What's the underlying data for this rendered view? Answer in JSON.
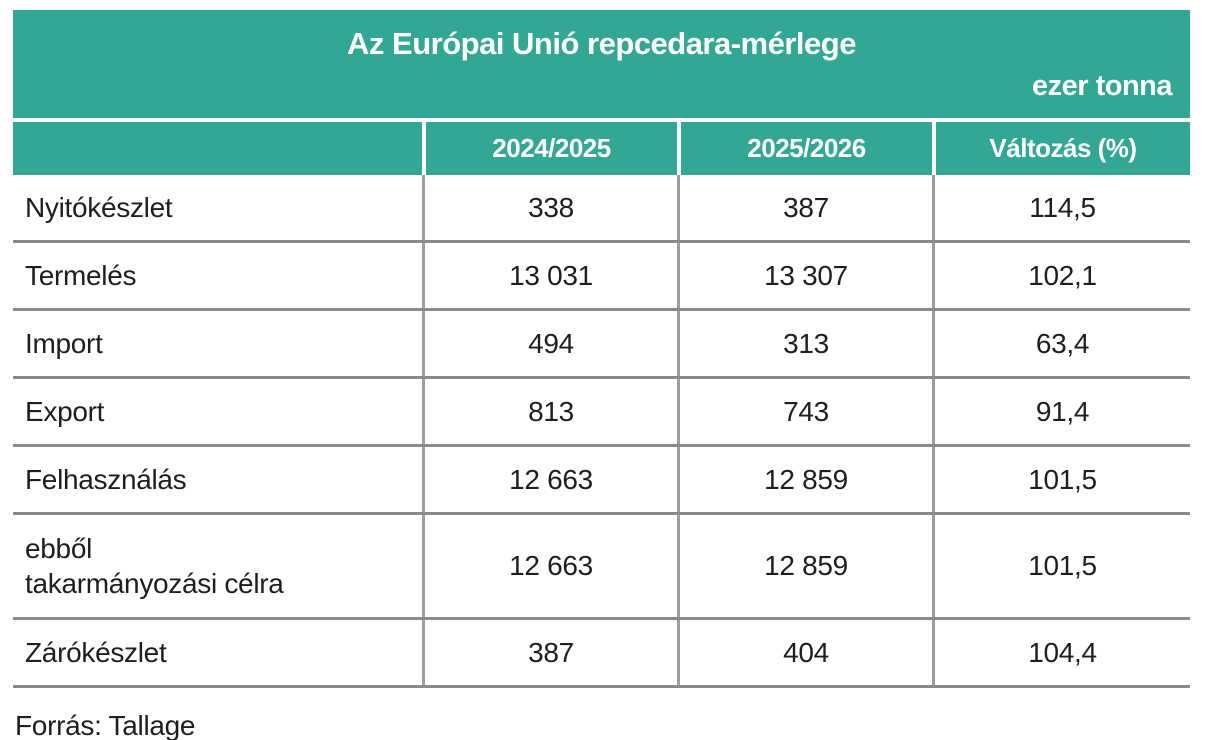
{
  "table": {
    "title": "Az Európai Unió repcedara-mérlege",
    "unit": "ezer tonna",
    "columns": [
      "",
      "2024/2025",
      "2025/2026",
      "Változás (%)"
    ],
    "rows": [
      {
        "label": "Nyitókészlet",
        "values": [
          "338",
          "387",
          "114,5"
        ]
      },
      {
        "label": "Termelés",
        "values": [
          "13 031",
          "13 307",
          "102,1"
        ]
      },
      {
        "label": "Import",
        "values": [
          "494",
          "313",
          "63,4"
        ]
      },
      {
        "label": "Export",
        "values": [
          "813",
          "743",
          "91,4"
        ]
      },
      {
        "label": "Felhasználás",
        "values": [
          "12 663",
          "12 859",
          "101,5"
        ]
      },
      {
        "label": "ebből\ntakarmányozási célra",
        "values": [
          "12 663",
          "12 859",
          "101,5"
        ]
      },
      {
        "label": "Zárókészlet",
        "values": [
          "387",
          "404",
          "104,4"
        ]
      }
    ],
    "source": "Forrás: Tallage"
  },
  "colors": {
    "accent_teal": "#31a794",
    "header_text": "#ffffff",
    "body_text": "#1e1e1e",
    "grid_line_horizontal": "#8a8a8a",
    "grid_line_vertical": "#9e9e9e",
    "background": "#ffffff"
  },
  "chart_data": {
    "type": "table",
    "title": "Az Európai Unió repcedara-mérlege",
    "unit_label": "ezer tonna",
    "categories": [
      "Nyitókészlet",
      "Termelés",
      "Import",
      "Export",
      "Felhasználás",
      "ebből takarmányozási célra",
      "Zárókészlet"
    ],
    "series": [
      {
        "name": "2024/2025",
        "values": [
          338,
          13031,
          494,
          813,
          12663,
          12663,
          387
        ]
      },
      {
        "name": "2025/2026",
        "values": [
          387,
          13307,
          313,
          743,
          12859,
          12859,
          404
        ]
      },
      {
        "name": "Változás (%)",
        "values": [
          114.5,
          102.1,
          63.4,
          91.4,
          101.5,
          101.5,
          104.4
        ]
      }
    ],
    "source": "Forrás: Tallage"
  }
}
